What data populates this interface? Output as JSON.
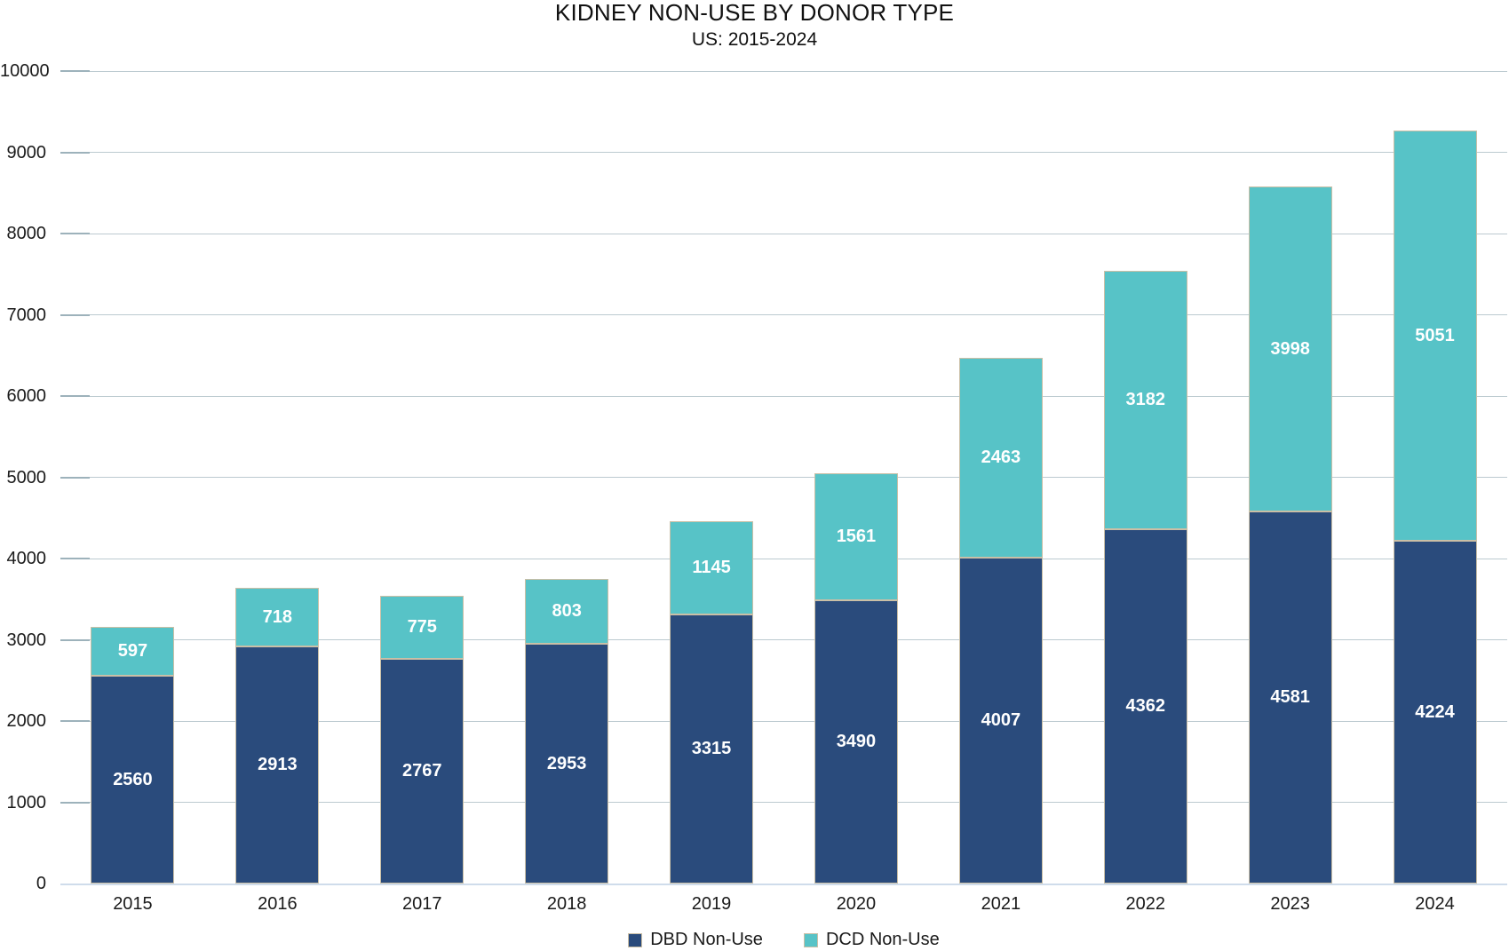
{
  "colors": {
    "dbd": "#2a4b7c",
    "dcd": "#57c3c7",
    "bar_border": "#cabfa6",
    "gridline": "#bccad0",
    "tick_mark": "#9db2bb",
    "axis_line": "#cfdceb",
    "data_label_text": "#ffffff",
    "axis_text": "#1a1a1a",
    "title_text": "#111111"
  },
  "chart_data": {
    "type": "bar",
    "stacked": true,
    "title": "KIDNEY NON-USE BY DONOR TYPE",
    "subtitle": "US: 2015-2024",
    "categories": [
      "2015",
      "2016",
      "2017",
      "2018",
      "2019",
      "2020",
      "2021",
      "2022",
      "2023",
      "2024"
    ],
    "series": [
      {
        "name": "DBD Non-Use",
        "color": "#2a4b7c",
        "values": [
          2560,
          2913,
          2767,
          2953,
          3315,
          3490,
          4007,
          4362,
          4581,
          4224
        ]
      },
      {
        "name": "DCD Non-Use",
        "color": "#57c3c7",
        "values": [
          597,
          718,
          775,
          803,
          1145,
          1561,
          2463,
          3182,
          3998,
          5051
        ]
      }
    ],
    "xlabel": "",
    "ylabel": "",
    "ylim": [
      0,
      10000
    ],
    "ytick_step": 1000,
    "grid": true,
    "data_labels": "center",
    "legend_position": "bottom"
  }
}
